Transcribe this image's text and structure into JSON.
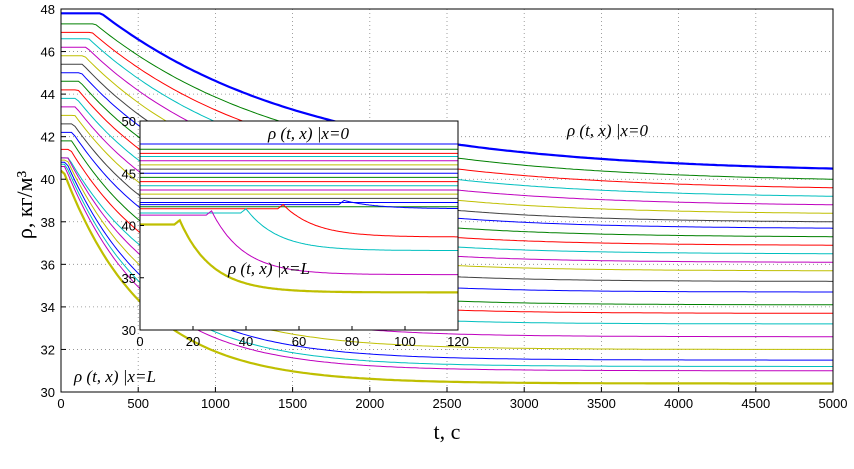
{
  "chart_data": [
    {
      "type": "line",
      "xlabel": "t, c",
      "ylabel": "ρ, кг/м³",
      "xlim": [
        0,
        5000
      ],
      "ylim": [
        30,
        48
      ],
      "xticks": [
        "0",
        "500",
        "1000",
        "1500",
        "2000",
        "2500",
        "3000",
        "3500",
        "4000",
        "4500",
        "5000"
      ],
      "yticks": [
        "30",
        "32",
        "34",
        "36",
        "38",
        "40",
        "42",
        "44",
        "46",
        "48"
      ],
      "grid": "dotted",
      "annotations": [
        "ρ (t, x) |x=0",
        "ρ (t, x) |x=L"
      ],
      "series_count": 24,
      "series": [
        {
          "start": 47.8,
          "plateau_until": 260,
          "end": 40.5,
          "color": "#0000ff",
          "bold": true
        },
        {
          "start": 47.3,
          "plateau_until": 220,
          "end": 40.0,
          "color": "#008000"
        },
        {
          "start": 46.9,
          "plateau_until": 200,
          "end": 39.6,
          "color": "#ff0000"
        },
        {
          "start": 46.6,
          "plateau_until": 180,
          "end": 39.2,
          "color": "#00bfbf"
        },
        {
          "start": 46.2,
          "plateau_until": 165,
          "end": 38.8,
          "color": "#bf00bf"
        },
        {
          "start": 45.8,
          "plateau_until": 150,
          "end": 38.4,
          "color": "#bfbf00"
        },
        {
          "start": 45.4,
          "plateau_until": 140,
          "end": 38.0,
          "color": "#404040"
        },
        {
          "start": 45.0,
          "plateau_until": 130,
          "end": 37.7,
          "color": "#0000ff"
        },
        {
          "start": 44.6,
          "plateau_until": 120,
          "end": 37.3,
          "color": "#008000"
        },
        {
          "start": 44.2,
          "plateau_until": 110,
          "end": 36.9,
          "color": "#ff0000"
        },
        {
          "start": 43.8,
          "plateau_until": 100,
          "end": 36.5,
          "color": "#00bfbf"
        },
        {
          "start": 43.4,
          "plateau_until": 95,
          "end": 36.1,
          "color": "#bf00bf"
        },
        {
          "start": 43.0,
          "plateau_until": 90,
          "end": 35.7,
          "color": "#bfbf00"
        },
        {
          "start": 42.6,
          "plateau_until": 80,
          "end": 35.2,
          "color": "#404040"
        },
        {
          "start": 42.2,
          "plateau_until": 75,
          "end": 34.7,
          "color": "#0000ff"
        },
        {
          "start": 41.8,
          "plateau_until": 70,
          "end": 34.1,
          "color": "#008000"
        },
        {
          "start": 41.4,
          "plateau_until": 60,
          "end": 33.7,
          "color": "#ff0000"
        },
        {
          "start": 41.0,
          "plateau_until": 50,
          "end": 33.2,
          "color": "#00bfbf"
        },
        {
          "start": 41.0,
          "plateau_until": 45,
          "end": 32.6,
          "color": "#bf00bf"
        },
        {
          "start": 40.9,
          "plateau_until": 40,
          "end": 32.0,
          "color": "#bfbf00"
        },
        {
          "start": 40.8,
          "plateau_until": 35,
          "end": 31.5,
          "color": "#0000ff"
        },
        {
          "start": 40.7,
          "plateau_until": 30,
          "end": 31.2,
          "color": "#00bfbf"
        },
        {
          "start": 40.6,
          "plateau_until": 25,
          "end": 31.0,
          "color": "#bf00bf"
        },
        {
          "start": 40.4,
          "plateau_until": 15,
          "end": 30.4,
          "color": "#bfbf00",
          "bold": true
        }
      ]
    },
    {
      "type": "line",
      "inset": true,
      "xlim": [
        0,
        120
      ],
      "ylim": [
        30,
        50
      ],
      "xticks": [
        "0",
        "20",
        "40",
        "60",
        "80",
        "100",
        "120"
      ],
      "yticks": [
        "30",
        "35",
        "40",
        "45",
        "50"
      ],
      "annotations": [
        "ρ (t, x) |x=0",
        "ρ (t, x) |x=L"
      ],
      "flat_levels": [
        47.8,
        47.3,
        46.9,
        46.6,
        46.2,
        45.8,
        45.4,
        45.0,
        44.6,
        44.2,
        43.8,
        43.4,
        43.0,
        42.6,
        42.2,
        41.8
      ],
      "flat_colors": [
        "#0000ff",
        "#008000",
        "#ff0000",
        "#00bfbf",
        "#bf00bf",
        "#bfbf00",
        "#404040",
        "#0000ff",
        "#008000",
        "#ff0000",
        "#00bfbf",
        "#bf00bf",
        "#bfbf00",
        "#404040",
        "#0000ff",
        "#008000"
      ],
      "series": [
        {
          "start": 42.0,
          "delay": 75,
          "end": 41.6,
          "color": "#0000ff"
        },
        {
          "start": 41.6,
          "delay": 52,
          "end": 38.9,
          "color": "#ff0000"
        },
        {
          "start": 41.2,
          "delay": 38,
          "end": 37.6,
          "color": "#00bfbf"
        },
        {
          "start": 41.0,
          "delay": 25,
          "end": 35.3,
          "color": "#bf00bf"
        },
        {
          "start": 40.1,
          "delay": 13,
          "end": 33.6,
          "color": "#bfbf00",
          "bold": true
        }
      ]
    }
  ]
}
